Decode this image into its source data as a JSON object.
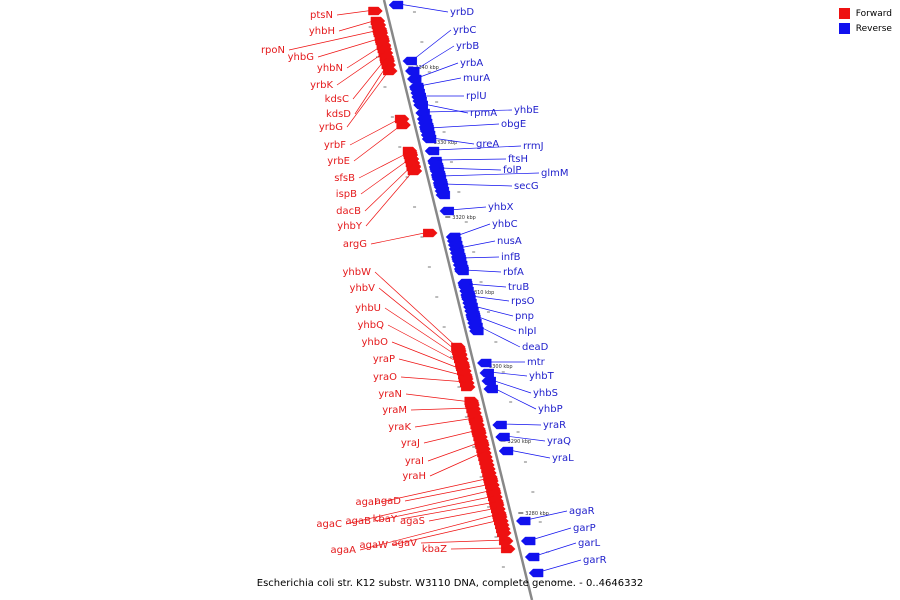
{
  "legend": [
    {
      "label": "Forward",
      "color": "#ee1111"
    },
    {
      "label": "Reverse",
      "color": "#1111ee"
    }
  ],
  "caption": "Escherichia coli str. K12 substr. W3110 DNA, complete genome. - 0..4646332",
  "colors": {
    "forward": "#ee1111",
    "reverse": "#1111ee",
    "backbone": "#888888"
  },
  "scale_marks": [
    {
      "label": "3340 kbp"
    },
    {
      "label": "3330 kbp"
    },
    {
      "label": "3320 kbp"
    },
    {
      "label": "3310 kbp"
    },
    {
      "label": "3300 kbp"
    },
    {
      "label": "3290 kbp"
    },
    {
      "label": "3280 kbp"
    }
  ],
  "forward_genes": [
    "ptsN",
    "yhbH",
    "rpoN",
    "yhbG",
    "yhbN",
    "yrbK",
    "kdsC",
    "kdsD",
    "yrbG",
    "yrbF",
    "yrbE",
    "sfsB",
    "ispB",
    "dacB",
    "yhbY",
    "argG",
    "yhbW",
    "yhbV",
    "yhbU",
    "yhbQ",
    "yhbO",
    "yraP",
    "yraO",
    "yraN",
    "yraM",
    "yraK",
    "yraJ",
    "yraI",
    "yraH",
    "agaI",
    "agaD",
    "agaC",
    "agaB",
    "kbaY",
    "agaS",
    "agaA",
    "agaW",
    "agaV",
    "kbaZ"
  ],
  "reverse_genes": [
    "yrbD",
    "yrbC",
    "yrbB",
    "yrbA",
    "murA",
    "rplU",
    "rpmA",
    "yhbE",
    "obgE",
    "greA",
    "rrmJ",
    "ftsH",
    "folP",
    "glmM",
    "secG",
    "yhbX",
    "yhbC",
    "nusA",
    "infB",
    "rbfA",
    "truB",
    "rpsO",
    "pnp",
    "nlpI",
    "deaD",
    "mtr",
    "yhbT",
    "yhbS",
    "yhbP",
    "yraR",
    "yraQ",
    "yraL",
    "agaR",
    "garP",
    "garL",
    "garR"
  ]
}
